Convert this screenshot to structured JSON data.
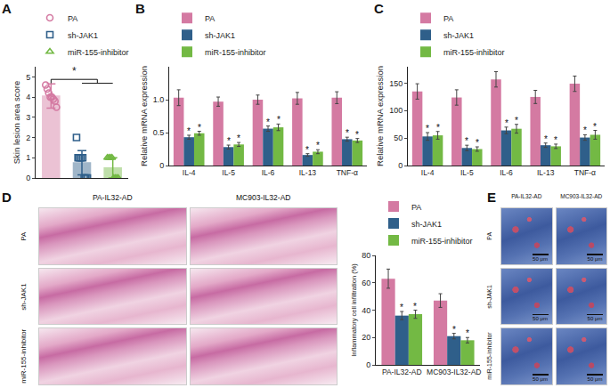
{
  "chart_data": [
    {
      "panel": "A",
      "type": "bar",
      "y_label": "Skin lesion area score",
      "categories": [
        null,
        null,
        null
      ],
      "series": [
        {
          "name": "PA",
          "color": "#d47aa2",
          "marker": "circle",
          "values": [
            4.05,
            null,
            null
          ],
          "error": [
            0.6,
            null,
            null
          ],
          "points": [
            4.6,
            4.4,
            4.2,
            4.0,
            4.0,
            3.9,
            3.8,
            3.5
          ]
        },
        {
          "name": "sh-JAK1",
          "color": "#2f5f8a",
          "marker": "square",
          "values": [
            null,
            0.75,
            null
          ],
          "error": [
            null,
            0.6,
            null
          ],
          "points": [
            2,
            1,
            1,
            1,
            1,
            0,
            0,
            0
          ]
        },
        {
          "name": "miR-155-inhibitor",
          "color": "#73b944",
          "marker": "triangle-up",
          "values": [
            null,
            null,
            0.5
          ],
          "error": [
            null,
            null,
            0.5
          ],
          "points": [
            1,
            1,
            1,
            1,
            0,
            0,
            0,
            0
          ]
        }
      ],
      "ylim": [
        0,
        5.5
      ],
      "yticks": [
        0,
        1,
        2,
        3,
        4,
        5
      ],
      "tick_labels": "y",
      "legend": "top-left",
      "annotations": [
        "*"
      ]
    },
    {
      "panel": "B",
      "type": "bar",
      "y_label": "Relative mRNA expression",
      "categories": [
        "IL-4",
        "IL-5",
        "IL-6",
        "IL-13",
        "TNF-α"
      ],
      "series": [
        {
          "name": "PA",
          "color": "#d47aa2",
          "values": [
            1.03,
            0.97,
            1.0,
            1.02,
            1.03
          ],
          "error": [
            0.12,
            0.07,
            0.07,
            0.09,
            0.09
          ],
          "significance": [
            null,
            null,
            null,
            null,
            null
          ]
        },
        {
          "name": "sh-JAK1",
          "color": "#2f5f8a",
          "values": [
            0.43,
            0.28,
            0.56,
            0.16,
            0.4
          ],
          "error": [
            0.03,
            0.03,
            0.04,
            0.02,
            0.03
          ],
          "significance": [
            "*",
            "*",
            "*",
            "*",
            "*"
          ]
        },
        {
          "name": "miR-155-inhibitor",
          "color": "#73b944",
          "values": [
            0.49,
            0.32,
            0.58,
            0.21,
            0.38
          ],
          "error": [
            0.03,
            0.03,
            0.05,
            0.03,
            0.03
          ],
          "significance": [
            "*",
            "*",
            "*",
            "*",
            "*"
          ]
        }
      ],
      "ylim": [
        0,
        1.5
      ],
      "yticks": [
        0,
        0.5,
        {
          "value": 1,
          "label": "1.0"
        }
      ],
      "legend": "top-left"
    },
    {
      "panel": "C",
      "type": "bar",
      "y_label": "Relative mRNA expression",
      "categories": [
        "IL-4",
        "IL-5",
        "IL-6",
        "IL-13",
        "TNF-α"
      ],
      "series": [
        {
          "name": "PA",
          "color": "#d47aa2",
          "values": [
            135,
            124,
            157,
            125,
            149
          ],
          "error": [
            14,
            14,
            14,
            12,
            14
          ],
          "significance": [
            null,
            null,
            null,
            null,
            null
          ]
        },
        {
          "name": "sh-JAK1",
          "color": "#2f5f8a",
          "values": [
            53,
            32,
            64,
            37,
            51
          ],
          "error": [
            7,
            5,
            6,
            4,
            5
          ],
          "significance": [
            "*",
            "*",
            "*",
            "*",
            "*"
          ]
        },
        {
          "name": "miR-155-inhibitor",
          "color": "#73b944",
          "values": [
            55,
            30,
            67,
            35,
            56
          ],
          "error": [
            7,
            4,
            8,
            4,
            8
          ],
          "significance": [
            "*",
            "*",
            "*",
            "*",
            "*"
          ]
        }
      ],
      "ylim": [
        0,
        180
      ],
      "yticks": [
        0,
        50,
        100,
        150
      ],
      "legend": "top-left"
    },
    {
      "type": "bar",
      "y_label": "Inflammatory cell infiltration (%)",
      "categories": [
        "PA-IL32-AD",
        "MC903-IL32-AD"
      ],
      "series": [
        {
          "name": "PA",
          "color": "#d47aa2",
          "values": [
            63,
            47
          ],
          "error": [
            7,
            5
          ],
          "significance": [
            null,
            null
          ]
        },
        {
          "name": "sh-JAK1",
          "color": "#2f5f8a",
          "values": [
            36,
            21
          ],
          "error": [
            3,
            2
          ],
          "significance": [
            "*",
            "*"
          ]
        },
        {
          "name": "miR-155-inhibitor",
          "color": "#73b944",
          "values": [
            37,
            18
          ],
          "error": [
            3,
            2
          ],
          "significance": [
            "*",
            "*"
          ]
        }
      ],
      "ylim": [
        0,
        80
      ],
      "yticks": [
        0,
        20,
        40,
        60,
        80
      ],
      "legend": "top-left"
    }
  ],
  "image_panels": [
    {
      "panel": "D",
      "columns": [
        "PA-IL32-AD",
        "MC903-IL32-AD"
      ],
      "rows": [
        "PA",
        "sh-JAK1",
        "miR-155-inhibitor"
      ]
    },
    {
      "panel": "E",
      "columns": [
        "PA-IL32-AD",
        "MC903-IL32-AD"
      ],
      "rows": [
        "PA",
        "sh-JAK1",
        "miR-155-inhibitor"
      ],
      "scale_bar": "50 μm"
    }
  ]
}
